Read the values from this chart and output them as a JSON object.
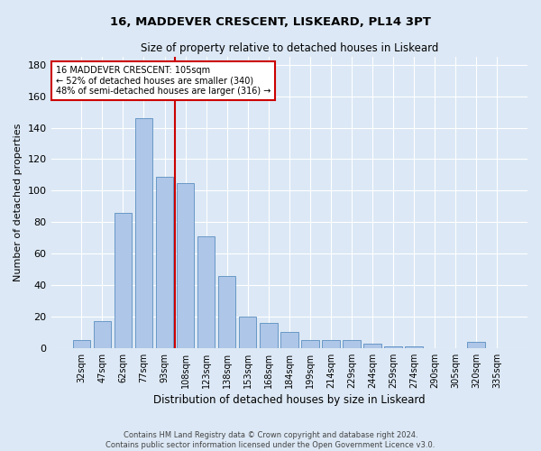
{
  "title1": "16, MADDEVER CRESCENT, LISKEARD, PL14 3PT",
  "title2": "Size of property relative to detached houses in Liskeard",
  "xlabel": "Distribution of detached houses by size in Liskeard",
  "ylabel": "Number of detached properties",
  "categories": [
    "32sqm",
    "47sqm",
    "62sqm",
    "77sqm",
    "93sqm",
    "108sqm",
    "123sqm",
    "138sqm",
    "153sqm",
    "168sqm",
    "184sqm",
    "199sqm",
    "214sqm",
    "229sqm",
    "244sqm",
    "259sqm",
    "274sqm",
    "290sqm",
    "305sqm",
    "320sqm",
    "335sqm"
  ],
  "values": [
    5,
    17,
    86,
    146,
    109,
    105,
    71,
    46,
    20,
    16,
    10,
    5,
    5,
    5,
    3,
    1,
    1,
    0,
    0,
    4,
    0
  ],
  "bar_color": "#aec6e8",
  "bar_edge_color": "#5a8fc0",
  "vline_x": 4.5,
  "vline_color": "#cc0000",
  "annotation_text": "16 MADDEVER CRESCENT: 105sqm\n← 52% of detached houses are smaller (340)\n48% of semi-detached houses are larger (316) →",
  "annotation_box_color": "#ffffff",
  "annotation_box_edge": "#cc0000",
  "ylim": [
    0,
    185
  ],
  "yticks": [
    0,
    20,
    40,
    60,
    80,
    100,
    120,
    140,
    160,
    180
  ],
  "footer1": "Contains HM Land Registry data © Crown copyright and database right 2024.",
  "footer2": "Contains public sector information licensed under the Open Government Licence v3.0.",
  "bg_color": "#dce8f5"
}
